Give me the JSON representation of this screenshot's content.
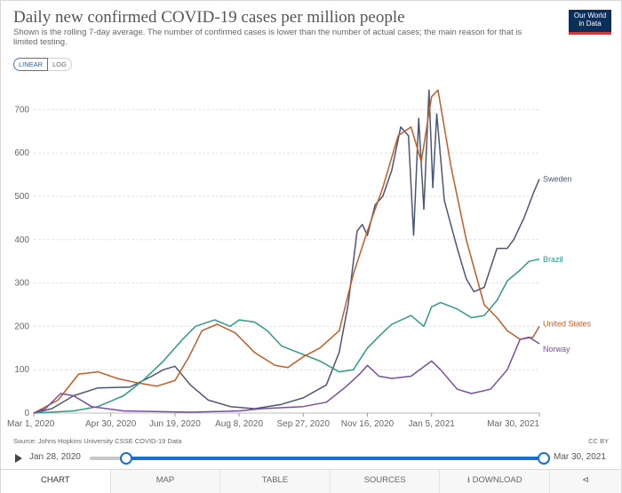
{
  "header": {
    "title": "Daily new confirmed COVID-19 cases per million people",
    "subtitle": "Shown is the rolling 7-day average. The number of confirmed cases is lower than the number of actual cases; the main reason for that is limited testing.",
    "logo_line1": "Our World",
    "logo_line2": "in Data"
  },
  "scale_toggle": {
    "linear": "LINEAR",
    "log": "LOG"
  },
  "footer": {
    "source": "Source: Johns Hopkins University CSSE COVID-19 Data",
    "license": "CC BY"
  },
  "timeline": {
    "start": "Jan 28, 2020",
    "end": "Mar 30, 2021"
  },
  "tabs": [
    {
      "label": "CHART"
    },
    {
      "label": "MAP"
    },
    {
      "label": "TABLE"
    },
    {
      "label": "SOURCES"
    },
    {
      "label": "DOWNLOAD"
    },
    {
      "label": ""
    }
  ],
  "icons": {
    "play": "play-icon",
    "download": "download-icon",
    "share": "share-icon"
  },
  "chart_data": {
    "type": "line",
    "title": "Daily new confirmed COVID-19 cases per million people",
    "xlabel": "",
    "ylabel": "",
    "ylim": [
      0,
      750
    ],
    "y_ticks": [
      0,
      100,
      200,
      300,
      400,
      500,
      600,
      700
    ],
    "x_ticks": [
      "Mar 1, 2020",
      "Apr 30, 2020",
      "Jun 19, 2020",
      "Aug 8, 2020",
      "Sep 27, 2020",
      "Nov 16, 2020",
      "Jan 5, 2021",
      "Mar 30, 2021"
    ],
    "x_range": [
      "2020-03-01",
      "2021-03-30"
    ],
    "grid": true,
    "legend": "line-end labels",
    "series": [
      {
        "name": "Sweden",
        "color": "#4c5675",
        "points": [
          [
            "2020-03-01",
            0
          ],
          [
            "2020-03-15",
            10
          ],
          [
            "2020-04-01",
            40
          ],
          [
            "2020-04-20",
            58
          ],
          [
            "2020-05-15",
            60
          ],
          [
            "2020-06-01",
            85
          ],
          [
            "2020-06-10",
            100
          ],
          [
            "2020-06-19",
            108
          ],
          [
            "2020-07-01",
            65
          ],
          [
            "2020-07-15",
            30
          ],
          [
            "2020-08-01",
            15
          ],
          [
            "2020-08-20",
            10
          ],
          [
            "2020-09-10",
            20
          ],
          [
            "2020-09-27",
            35
          ],
          [
            "2020-10-15",
            65
          ],
          [
            "2020-10-25",
            140
          ],
          [
            "2020-11-01",
            250
          ],
          [
            "2020-11-08",
            420
          ],
          [
            "2020-11-12",
            435
          ],
          [
            "2020-11-16",
            410
          ],
          [
            "2020-11-22",
            480
          ],
          [
            "2020-11-28",
            500
          ],
          [
            "2020-12-05",
            560
          ],
          [
            "2020-12-12",
            660
          ],
          [
            "2020-12-18",
            640
          ],
          [
            "2020-12-22",
            410
          ],
          [
            "2020-12-26",
            680
          ],
          [
            "2020-12-30",
            470
          ],
          [
            "2021-01-03",
            745
          ],
          [
            "2021-01-06",
            520
          ],
          [
            "2021-01-09",
            690
          ],
          [
            "2021-01-15",
            490
          ],
          [
            "2021-01-25",
            380
          ],
          [
            "2021-02-01",
            310
          ],
          [
            "2021-02-07",
            280
          ],
          [
            "2021-02-15",
            290
          ],
          [
            "2021-02-25",
            380
          ],
          [
            "2021-03-05",
            380
          ],
          [
            "2021-03-10",
            400
          ],
          [
            "2021-03-18",
            450
          ],
          [
            "2021-03-25",
            505
          ],
          [
            "2021-03-30",
            540
          ]
        ]
      },
      {
        "name": "Brazil",
        "color": "#2d9a8a",
        "points": [
          [
            "2020-03-01",
            0
          ],
          [
            "2020-04-01",
            5
          ],
          [
            "2020-04-20",
            15
          ],
          [
            "2020-05-10",
            40
          ],
          [
            "2020-05-25",
            75
          ],
          [
            "2020-06-10",
            120
          ],
          [
            "2020-06-25",
            170
          ],
          [
            "2020-07-05",
            200
          ],
          [
            "2020-07-20",
            215
          ],
          [
            "2020-08-01",
            200
          ],
          [
            "2020-08-08",
            215
          ],
          [
            "2020-08-20",
            210
          ],
          [
            "2020-08-30",
            190
          ],
          [
            "2020-09-10",
            155
          ],
          [
            "2020-09-27",
            135
          ],
          [
            "2020-10-10",
            120
          ],
          [
            "2020-10-25",
            95
          ],
          [
            "2020-11-05",
            100
          ],
          [
            "2020-11-16",
            150
          ],
          [
            "2020-11-26",
            180
          ],
          [
            "2020-12-05",
            205
          ],
          [
            "2020-12-20",
            225
          ],
          [
            "2020-12-30",
            200
          ],
          [
            "2021-01-05",
            245
          ],
          [
            "2021-01-12",
            255
          ],
          [
            "2021-01-25",
            240
          ],
          [
            "2021-02-05",
            220
          ],
          [
            "2021-02-15",
            225
          ],
          [
            "2021-02-25",
            260
          ],
          [
            "2021-03-05",
            305
          ],
          [
            "2021-03-15",
            330
          ],
          [
            "2021-03-22",
            350
          ],
          [
            "2021-03-30",
            355
          ]
        ]
      },
      {
        "name": "United States",
        "color": "#c45c25",
        "points": [
          [
            "2020-03-01",
            0
          ],
          [
            "2020-03-20",
            30
          ],
          [
            "2020-04-05",
            90
          ],
          [
            "2020-04-20",
            95
          ],
          [
            "2020-05-05",
            80
          ],
          [
            "2020-05-20",
            70
          ],
          [
            "2020-06-05",
            62
          ],
          [
            "2020-06-19",
            75
          ],
          [
            "2020-06-30",
            130
          ],
          [
            "2020-07-10",
            190
          ],
          [
            "2020-07-22",
            205
          ],
          [
            "2020-08-05",
            185
          ],
          [
            "2020-08-20",
            140
          ],
          [
            "2020-09-05",
            110
          ],
          [
            "2020-09-15",
            105
          ],
          [
            "2020-09-27",
            130
          ],
          [
            "2020-10-10",
            150
          ],
          [
            "2020-10-25",
            190
          ],
          [
            "2020-11-05",
            320
          ],
          [
            "2020-11-16",
            420
          ],
          [
            "2020-11-28",
            520
          ],
          [
            "2020-12-10",
            640
          ],
          [
            "2020-12-20",
            660
          ],
          [
            "2020-12-28",
            580
          ],
          [
            "2021-01-05",
            730
          ],
          [
            "2021-01-10",
            745
          ],
          [
            "2021-01-20",
            570
          ],
          [
            "2021-02-01",
            400
          ],
          [
            "2021-02-15",
            250
          ],
          [
            "2021-02-25",
            220
          ],
          [
            "2021-03-05",
            190
          ],
          [
            "2021-03-15",
            170
          ],
          [
            "2021-03-25",
            175
          ],
          [
            "2021-03-30",
            200
          ]
        ]
      },
      {
        "name": "Norway",
        "color": "#7a4ca1",
        "points": [
          [
            "2020-03-01",
            0
          ],
          [
            "2020-03-10",
            10
          ],
          [
            "2020-03-22",
            45
          ],
          [
            "2020-04-01",
            40
          ],
          [
            "2020-04-15",
            15
          ],
          [
            "2020-05-10",
            5
          ],
          [
            "2020-07-01",
            2
          ],
          [
            "2020-08-08",
            5
          ],
          [
            "2020-08-25",
            10
          ],
          [
            "2020-09-27",
            15
          ],
          [
            "2020-10-15",
            25
          ],
          [
            "2020-10-30",
            60
          ],
          [
            "2020-11-10",
            90
          ],
          [
            "2020-11-16",
            110
          ],
          [
            "2020-11-25",
            85
          ],
          [
            "2020-12-05",
            80
          ],
          [
            "2020-12-20",
            85
          ],
          [
            "2021-01-05",
            120
          ],
          [
            "2021-01-12",
            100
          ],
          [
            "2021-01-25",
            55
          ],
          [
            "2021-02-05",
            45
          ],
          [
            "2021-02-20",
            55
          ],
          [
            "2021-03-05",
            100
          ],
          [
            "2021-03-15",
            170
          ],
          [
            "2021-03-22",
            175
          ],
          [
            "2021-03-30",
            160
          ]
        ]
      }
    ]
  }
}
